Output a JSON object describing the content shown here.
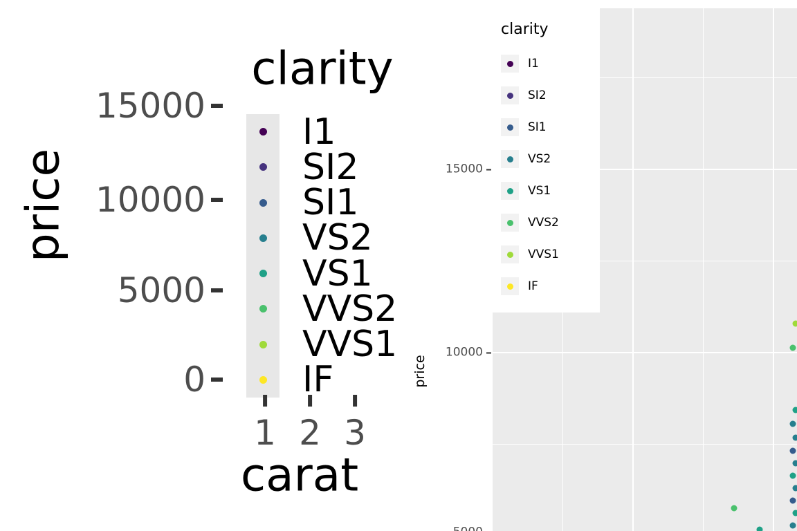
{
  "colors": {
    "panel_bg": "#EBEBEB",
    "gridline": "#FFFFFF",
    "tick_mark": "#333333",
    "tick_label": "#4D4D4D",
    "axis_title": "#000000",
    "left_legend_key_bg": "#E7E7E7",
    "right_legend_key_bg": "#F2F2F2",
    "right_legend_bg": "#FFFFFF"
  },
  "clarity_levels": [
    {
      "label": "I1",
      "color": "#440154"
    },
    {
      "label": "SI2",
      "color": "#46337E"
    },
    {
      "label": "SI1",
      "color": "#365C8D"
    },
    {
      "label": "VS2",
      "color": "#277F8E"
    },
    {
      "label": "VS1",
      "color": "#1FA187"
    },
    {
      "label": "VVS2",
      "color": "#4AC16D"
    },
    {
      "label": "VVS1",
      "color": "#9FDA3A"
    },
    {
      "label": "IF",
      "color": "#FDE725"
    }
  ],
  "left_plot": {
    "y_axis_title": "price",
    "x_axis_title": "carat",
    "legend_title": "clarity",
    "y_ticks": [
      "15000",
      "10000",
      "5000",
      "0"
    ],
    "x_ticks": [
      "1",
      "2",
      "3"
    ]
  },
  "right_plot": {
    "y_axis_title": "price",
    "legend_title": "clarity",
    "y_ticks": [
      "15000",
      "10000",
      "5000"
    ]
  },
  "chart_data": {
    "type": "scatter",
    "xlabel": "carat",
    "ylabel": "price",
    "color_by": "clarity",
    "legend_title": "clarity",
    "legend_position": "inside-top-left",
    "legend_entries": [
      "I1",
      "SI2",
      "SI1",
      "VS2",
      "VS1",
      "VVS2",
      "VVS1",
      "IF"
    ],
    "left_plot_axes": {
      "x_ticks": [
        1,
        2,
        3
      ],
      "y_ticks": [
        0,
        5000,
        10000,
        15000
      ]
    },
    "right_plot_axes": {
      "visible_y_ticks": [
        15000,
        10000,
        5000
      ],
      "grid": true
    },
    "points": [
      {
        "carat": 2.16,
        "price": 10790,
        "clarity": "VVS1"
      },
      {
        "carat": 2.14,
        "price": 10130,
        "clarity": "VVS2"
      },
      {
        "carat": 2.16,
        "price": 8430,
        "clarity": "VS1"
      },
      {
        "carat": 2.14,
        "price": 8060,
        "clarity": "VS2"
      },
      {
        "carat": 2.16,
        "price": 7680,
        "clarity": "VS2"
      },
      {
        "carat": 2.14,
        "price": 7320,
        "clarity": "SI1"
      },
      {
        "carat": 2.16,
        "price": 6980,
        "clarity": "VS2"
      },
      {
        "carat": 2.14,
        "price": 6640,
        "clarity": "VS1"
      },
      {
        "carat": 2.16,
        "price": 6300,
        "clarity": "VS2"
      },
      {
        "carat": 2.14,
        "price": 5960,
        "clarity": "SI1"
      },
      {
        "carat": 2.16,
        "price": 5620,
        "clarity": "VS1"
      },
      {
        "carat": 2.14,
        "price": 5280,
        "clarity": "VS2"
      },
      {
        "carat": 1.72,
        "price": 5760,
        "clarity": "VVS2"
      },
      {
        "carat": 1.9,
        "price": 5170,
        "clarity": "VS1"
      }
    ]
  }
}
